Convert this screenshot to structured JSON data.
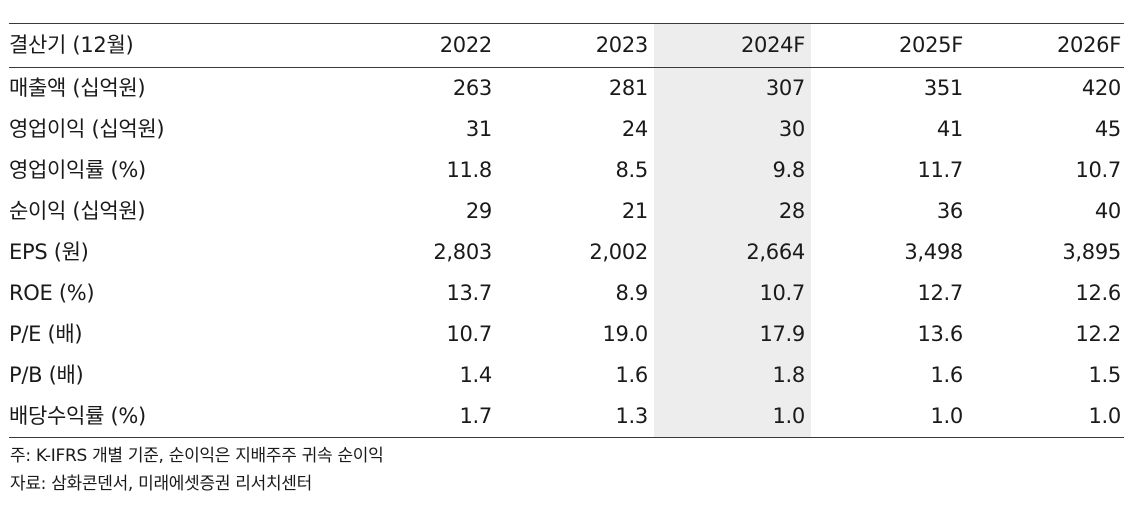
{
  "table": {
    "header": [
      "결산기 (12월)",
      "2022",
      "2023",
      "2024F",
      "2025F",
      "2026F"
    ],
    "rows": [
      {
        "label": "매출액 (십억원)",
        "values": [
          "263",
          "281",
          "307",
          "351",
          "420"
        ]
      },
      {
        "label": "영업이익 (십억원)",
        "values": [
          "31",
          "24",
          "30",
          "41",
          "45"
        ]
      },
      {
        "label": "영업이익률 (%)",
        "values": [
          "11.8",
          "8.5",
          "9.8",
          "11.7",
          "10.7"
        ]
      },
      {
        "label": "순이익 (십억원)",
        "values": [
          "29",
          "21",
          "28",
          "36",
          "40"
        ]
      },
      {
        "label": "EPS (원)",
        "values": [
          "2,803",
          "2,002",
          "2,664",
          "3,498",
          "3,895"
        ]
      },
      {
        "label": "ROE (%)",
        "values": [
          "13.7",
          "8.9",
          "10.7",
          "12.7",
          "12.6"
        ]
      },
      {
        "label": "P/E (배)",
        "values": [
          "10.7",
          "19.0",
          "17.9",
          "13.6",
          "12.2"
        ]
      },
      {
        "label": "P/B (배)",
        "values": [
          "1.4",
          "1.6",
          "1.8",
          "1.6",
          "1.5"
        ]
      },
      {
        "label": "배당수익률 (%)",
        "values": [
          "1.7",
          "1.3",
          "1.0",
          "1.0",
          "1.0"
        ]
      }
    ],
    "highlight_color": "#ededed"
  },
  "notes": {
    "note": "주: K-IFRS 개별 기준, 순이익은 지배주주 귀속 순이익",
    "source": "자료: 삼화콘덴서, 미래에셋증권 리서치센터"
  }
}
